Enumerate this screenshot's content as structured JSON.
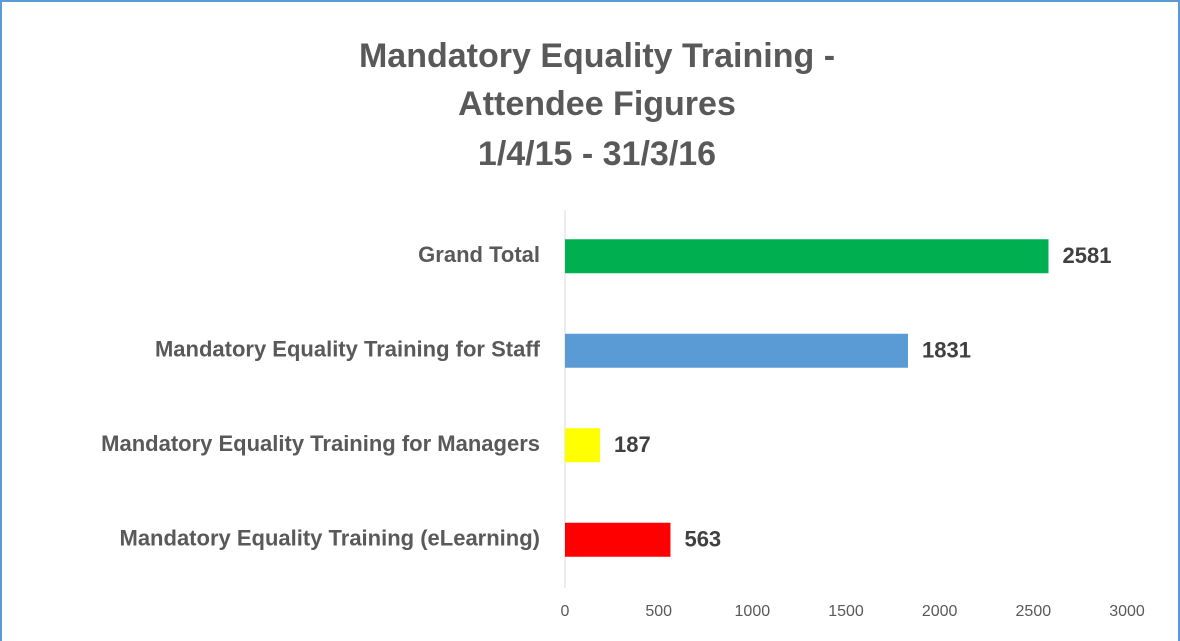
{
  "chart_data": {
    "type": "barh",
    "title": [
      "Mandatory Equality Training -",
      "Attendee Figures",
      "1/4/15 - 31/3/16"
    ],
    "categories": [
      "Grand Total",
      "Mandatory Equality Training for Staff",
      "Mandatory Equality Training for Managers",
      "Mandatory Equality Training (eLearning)"
    ],
    "values": [
      2581,
      1831,
      187,
      563
    ],
    "colors": [
      "#00b050",
      "#5b9bd5",
      "#ffff00",
      "#ff0000"
    ],
    "xlim": [
      0,
      3000
    ],
    "xticks": [
      0,
      500,
      1000,
      1500,
      2000,
      2500,
      3000
    ],
    "grid": false
  }
}
